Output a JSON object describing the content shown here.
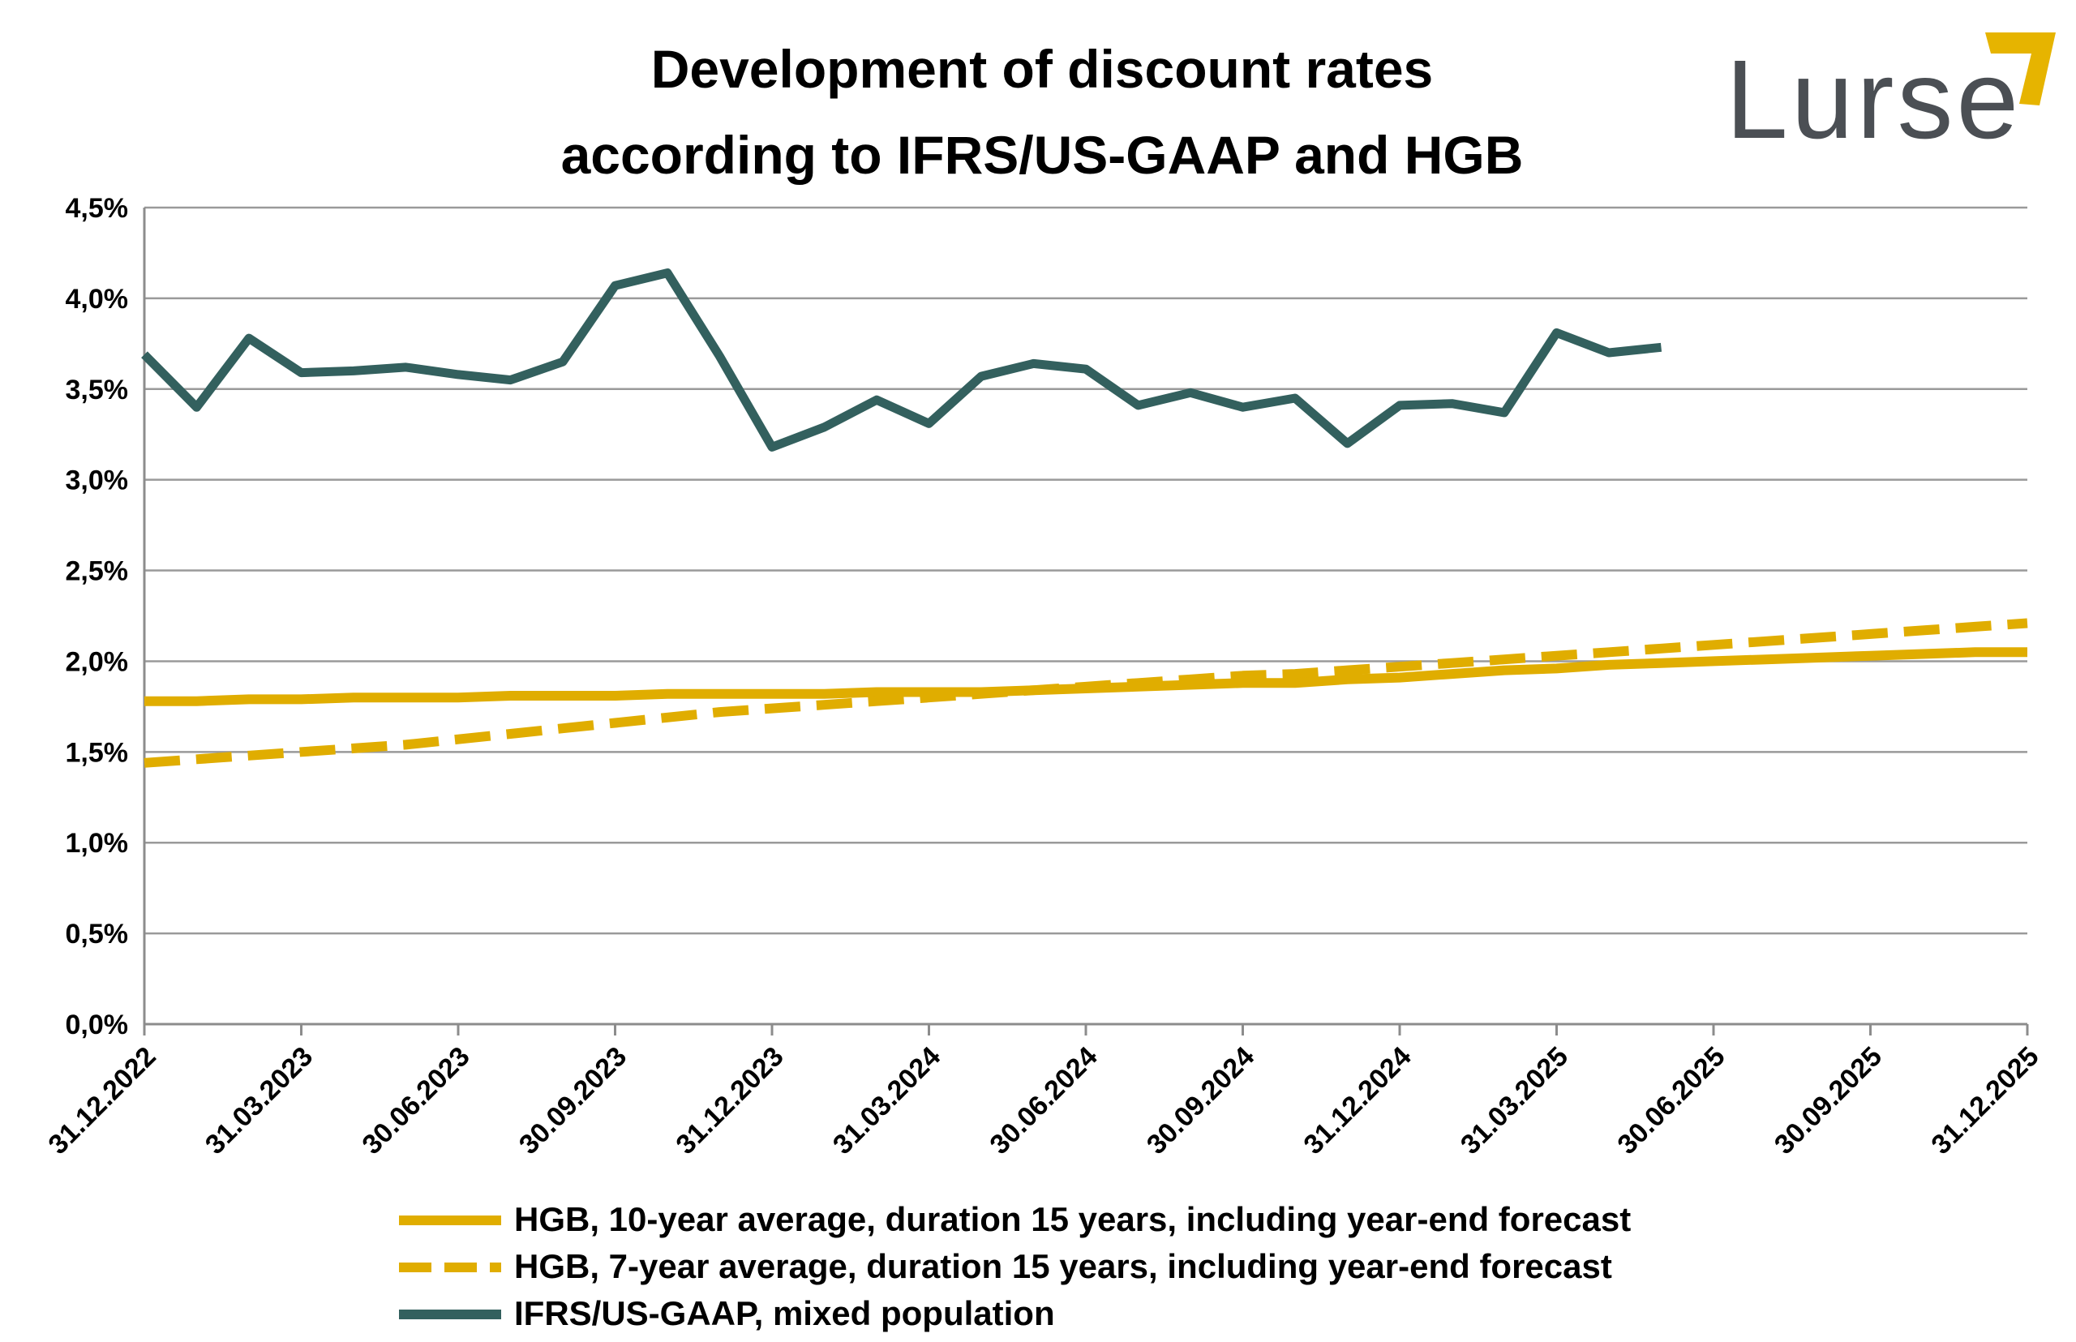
{
  "logo": {
    "text": "Lurse",
    "text_color": "#4b4f54",
    "accent_color": "#e6b400"
  },
  "chart_data": {
    "type": "line",
    "title": "Development of discount rates according to IFRS/US-GAAP and HGB",
    "title_lines": [
      "Development of discount rates",
      "according to IFRS/US-GAAP and HGB"
    ],
    "xlabel": "",
    "ylabel": "",
    "ylim": [
      0,
      4.5
    ],
    "y_ticks": [
      0,
      0.5,
      1.0,
      1.5,
      2.0,
      2.5,
      3.0,
      3.5,
      4.0,
      4.5
    ],
    "y_tick_labels": [
      "0,0%",
      "0,5%",
      "1,0%",
      "1,5%",
      "2,0%",
      "2,5%",
      "3,0%",
      "3,5%",
      "4,0%",
      "4,5%"
    ],
    "grid": true,
    "x_points": 37,
    "x_tick_labels": [
      "31.12.2022",
      "31.03.2023",
      "30.06.2023",
      "30.09.2023",
      "31.12.2023",
      "31.03.2024",
      "30.06.2024",
      "30.09.2024",
      "31.12.2024",
      "31.03.2025",
      "30.06.2025",
      "30.09.2025",
      "31.12.2025"
    ],
    "legend_position": "bottom",
    "series": [
      {
        "name": "HGB, 10-year average, duration 15 years, including year-end forecast",
        "color": "#e0ad00",
        "style": "solid",
        "values": [
          1.78,
          1.78,
          1.79,
          1.79,
          1.8,
          1.8,
          1.8,
          1.81,
          1.81,
          1.81,
          1.82,
          1.82,
          1.82,
          1.82,
          1.83,
          1.83,
          1.83,
          1.84,
          1.85,
          1.86,
          1.87,
          1.88,
          1.88,
          1.9,
          1.91,
          1.93,
          1.95,
          1.96,
          1.98,
          1.99,
          2.0,
          2.01,
          2.02,
          2.03,
          2.04,
          2.05,
          2.05
        ]
      },
      {
        "name": "HGB, 7-year average, duration 15 years, including year-end forecast",
        "color": "#e0ad00",
        "style": "dashed",
        "values": [
          1.44,
          1.46,
          1.48,
          1.5,
          1.52,
          1.54,
          1.57,
          1.6,
          1.63,
          1.66,
          1.69,
          1.72,
          1.74,
          1.76,
          1.78,
          1.8,
          1.82,
          1.84,
          1.86,
          1.88,
          1.9,
          1.92,
          1.93,
          1.95,
          1.97,
          1.99,
          2.01,
          2.03,
          2.05,
          2.07,
          2.09,
          2.11,
          2.13,
          2.15,
          2.17,
          2.19,
          2.21
        ]
      },
      {
        "name": "IFRS/US-GAAP, mixed population",
        "color": "#33605e",
        "style": "solid",
        "values": [
          3.69,
          3.4,
          3.78,
          3.59,
          3.6,
          3.62,
          3.58,
          3.55,
          3.65,
          4.07,
          4.14,
          3.68,
          3.18,
          3.29,
          3.44,
          3.31,
          3.57,
          3.64,
          3.61,
          3.41,
          3.48,
          3.4,
          3.45,
          3.2,
          3.41,
          3.42,
          3.37,
          3.81,
          3.7,
          3.73
        ]
      }
    ]
  }
}
